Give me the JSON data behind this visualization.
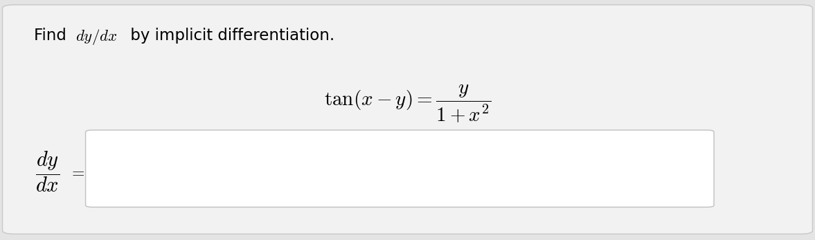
{
  "background_color": "#e4e4e4",
  "card_color": "#f2f2f2",
  "input_box_color": "#ffffff",
  "title_plain": "Find ",
  "title_math": "$dy/dx$",
  "title_rest": " by implicit differentiation.",
  "equation_text": "$\\tan(x - y) = \\dfrac{y}{1 + x^2}$",
  "lhs_text": "$\\dfrac{dy}{dx}$",
  "equals_text": "$=$",
  "title_fontsize": 16.5,
  "equation_fontsize": 21,
  "lhs_fontsize": 22,
  "equals_fontsize": 17,
  "card_border_color": "#c8c8c8",
  "input_border_color": "#c0c0c0"
}
